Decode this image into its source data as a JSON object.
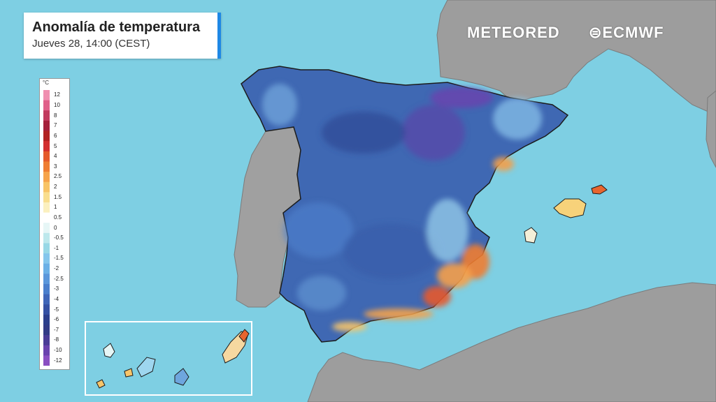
{
  "title": "Anomalía de temperatura",
  "subtitle": "Jueves 28, 14:00 (CEST)",
  "brand": {
    "meteored": "METEORED",
    "ecmwf": "ECMWF"
  },
  "legend": {
    "unit": "°C",
    "labels": [
      "12",
      "10",
      "8",
      "7",
      "6",
      "5",
      "4",
      "3",
      "2.5",
      "2",
      "1.5",
      "1",
      "0.5",
      "0",
      "-0.5",
      "-1",
      "-1.5",
      "-2",
      "-2.5",
      "-3",
      "-4",
      "-5",
      "-6",
      "-7",
      "-8",
      "-10",
      "-12"
    ],
    "colors": [
      "#f08fb0",
      "#e0608a",
      "#c23b5e",
      "#a5203a",
      "#b22222",
      "#d32f2f",
      "#e55a2b",
      "#ef7d32",
      "#f6a34a",
      "#f8c466",
      "#f9de8e",
      "#fbf0bf",
      "#ffffff",
      "#e6f6f6",
      "#bde8ec",
      "#98d8e6",
      "#84c6ec",
      "#6bb0e6",
      "#5a97db",
      "#4a7fcc",
      "#3f66b8",
      "#3551a3",
      "#2c3f8c",
      "#323b86",
      "#4a3c97",
      "#6a42ae",
      "#8a4fc2"
    ]
  },
  "colors": {
    "sea": "#7ecfe3",
    "land": "#9a9a9a",
    "cold": "#3c64b0",
    "warm": "#e8652e",
    "accent": "#1e88e5"
  }
}
